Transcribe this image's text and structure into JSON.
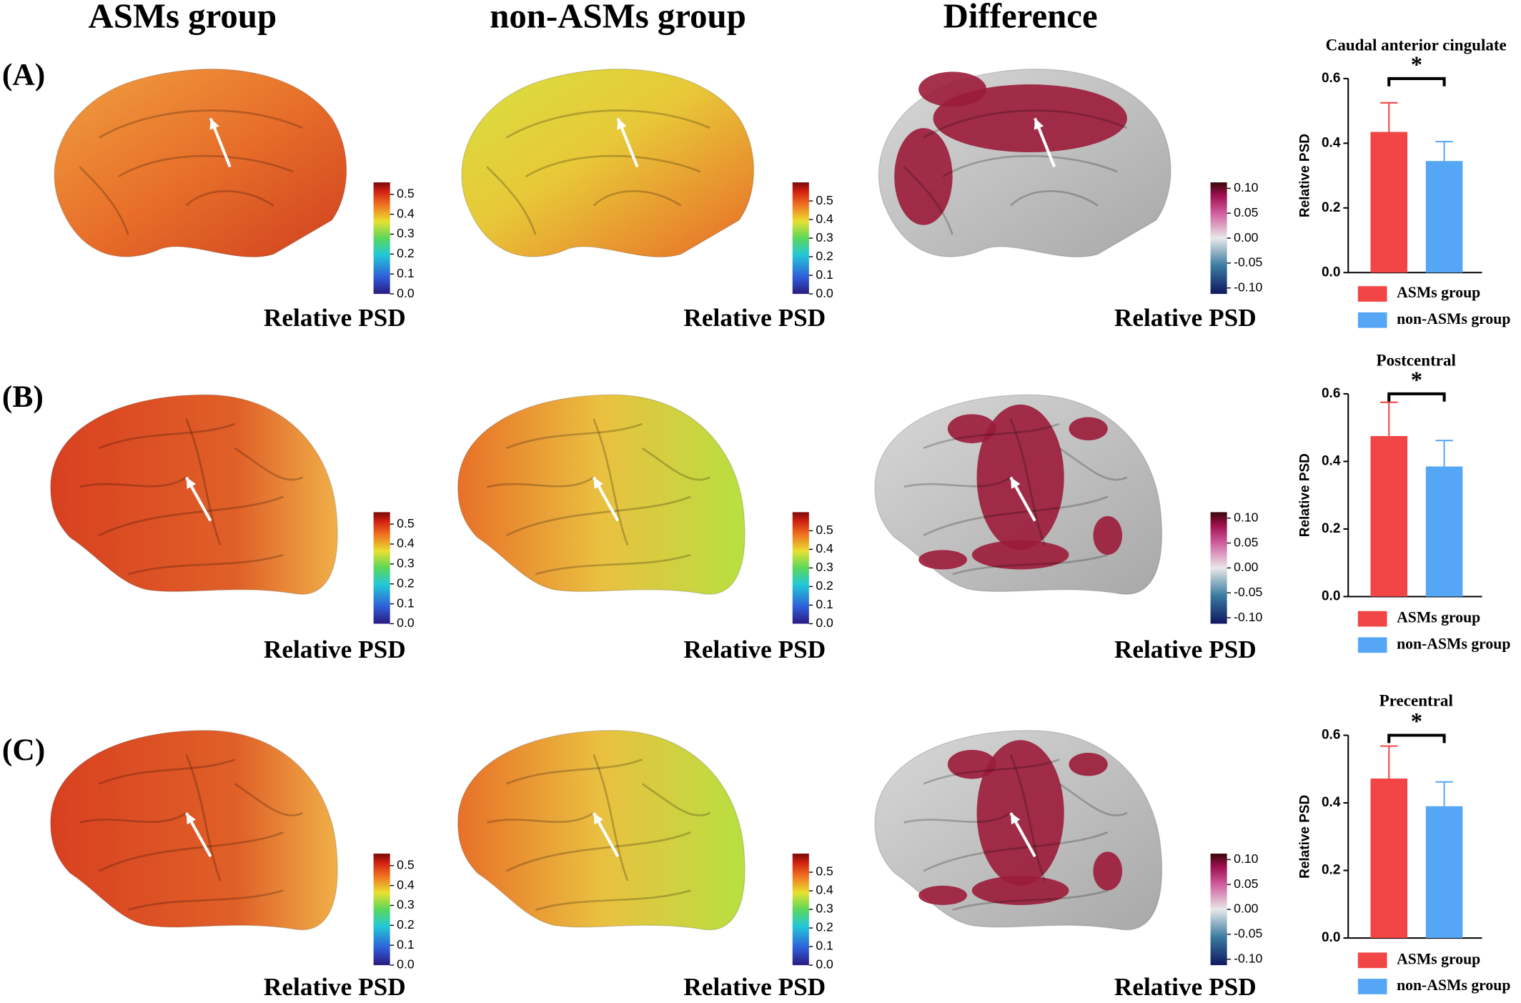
{
  "columns": [
    "ASMs group",
    "non-ASMs group",
    "Difference"
  ],
  "rows": [
    "(A)",
    "(B)",
    "(C)"
  ],
  "colorbar_label": "Relative PSD",
  "colorbars": [
    {
      "lim": [
        0,
        0.56
      ],
      "ticks": [
        {
          "value": 0,
          "label": "0.0"
        },
        {
          "value": 0.1,
          "label": "0.1"
        },
        {
          "value": 0.2,
          "label": "0.2"
        },
        {
          "value": 0.3,
          "label": "0.3"
        },
        {
          "value": 0.4,
          "label": "0.4"
        },
        {
          "value": 0.5,
          "label": "0.5"
        }
      ]
    },
    {
      "lim": [
        0,
        0.6
      ],
      "ticks": [
        {
          "value": 0,
          "label": "0.0"
        },
        {
          "value": 0.1,
          "label": "0.1"
        },
        {
          "value": 0.2,
          "label": "0.2"
        },
        {
          "value": 0.3,
          "label": "0.3"
        },
        {
          "value": 0.4,
          "label": "0.4"
        },
        {
          "value": 0.5,
          "label": "0.5"
        }
      ]
    },
    {
      "lim": [
        -0.112,
        0.112
      ],
      "ticks": [
        {
          "value": -0.1,
          "label": "-0.10"
        },
        {
          "value": -0.05,
          "label": "-0.05"
        },
        {
          "value": 0,
          "label": "0.00"
        },
        {
          "value": 0.05,
          "label": "0.05"
        },
        {
          "value": 0.1,
          "label": "0.10"
        }
      ]
    }
  ],
  "chart_data": [
    {
      "type": "bar",
      "title": "Caudal anterior cingulate",
      "ylabel": "Relative PSD",
      "categories": [
        "ASMs group",
        "non-ASMs group"
      ],
      "colors": [
        "#f24545",
        "#56a6f6"
      ],
      "values": [
        0.435,
        0.345
      ],
      "errors": [
        0.09,
        0.06
      ],
      "annotation": "*",
      "ylim": [
        0,
        0.6
      ],
      "yticks": [
        {
          "value": 0,
          "label": "0.0"
        },
        {
          "value": 0.2,
          "label": "0.2"
        },
        {
          "value": 0.4,
          "label": "0.4"
        },
        {
          "value": 0.6,
          "label": "0.6"
        }
      ]
    },
    {
      "type": "bar",
      "title": "Postcentral",
      "ylabel": "Relative PSD",
      "categories": [
        "ASMs group",
        "non-ASMs group"
      ],
      "colors": [
        "#f24545",
        "#56a6f6"
      ],
      "values": [
        0.475,
        0.385
      ],
      "errors": [
        0.1,
        0.077
      ],
      "annotation": "*",
      "ylim": [
        0,
        0.6
      ],
      "yticks": [
        {
          "value": 0,
          "label": "0.0"
        },
        {
          "value": 0.2,
          "label": "0.2"
        },
        {
          "value": 0.4,
          "label": "0.4"
        },
        {
          "value": 0.6,
          "label": "0.6"
        }
      ]
    },
    {
      "type": "bar",
      "title": "Precentral",
      "ylabel": "Relative PSD",
      "categories": [
        "ASMs group",
        "non-ASMs group"
      ],
      "colors": [
        "#f24545",
        "#56a6f6"
      ],
      "values": [
        0.472,
        0.39
      ],
      "errors": [
        0.096,
        0.072
      ],
      "annotation": "*",
      "ylim": [
        0,
        0.6
      ],
      "yticks": [
        {
          "value": 0,
          "label": "0.0"
        },
        {
          "value": 0.2,
          "label": "0.2"
        },
        {
          "value": 0.4,
          "label": "0.4"
        },
        {
          "value": 0.6,
          "label": "0.6"
        }
      ]
    }
  ]
}
